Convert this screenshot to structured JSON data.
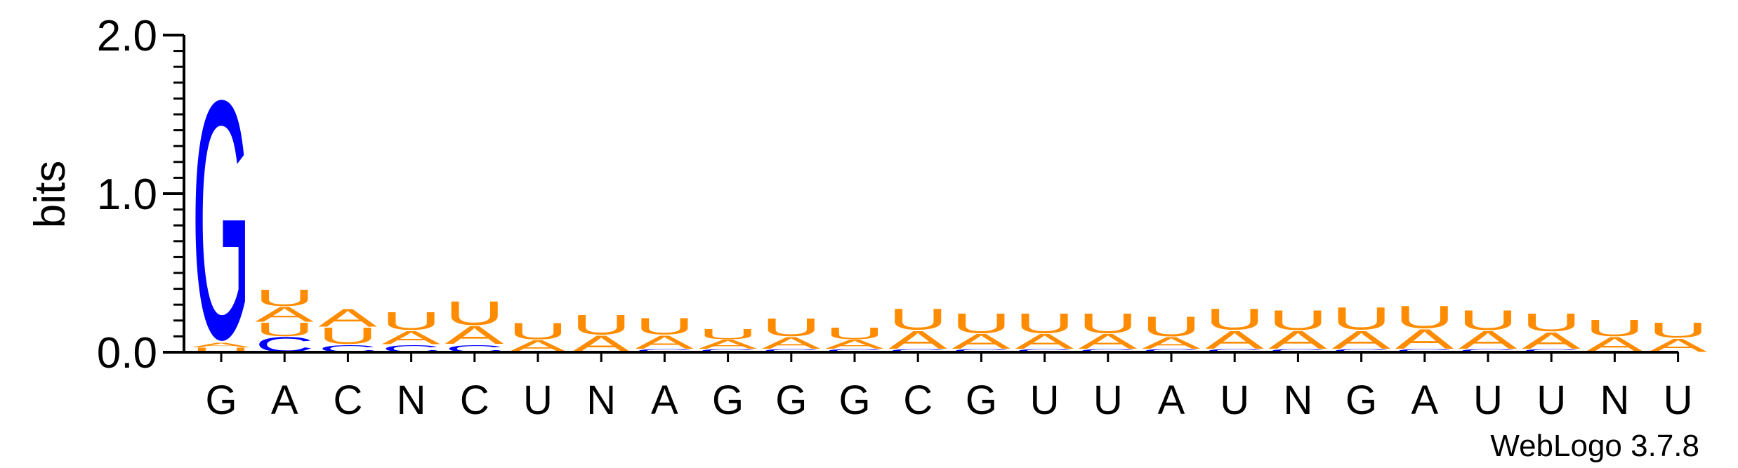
{
  "chart_data": {
    "type": "sequence-logo",
    "ylabel": "bits",
    "ylim": [
      0,
      2.0
    ],
    "yticks": [
      "0.0",
      "1.0",
      "2.0"
    ],
    "colors": {
      "G": "#0000ff",
      "C": "#0000ff",
      "A": "#ff8c00",
      "U": "#ff8c00"
    },
    "positions": [
      {
        "label": "G",
        "stack": [
          {
            "letter": "U",
            "bits": 0.03
          },
          {
            "letter": "A",
            "bits": 0.03
          },
          {
            "letter": "G",
            "bits": 1.6
          }
        ]
      },
      {
        "label": "A",
        "stack": [
          {
            "letter": "C",
            "bits": 0.1
          },
          {
            "letter": "U",
            "bits": 0.09
          },
          {
            "letter": "A",
            "bits": 0.1
          },
          {
            "letter": "U",
            "bits": 0.11
          }
        ]
      },
      {
        "label": "C",
        "stack": [
          {
            "letter": "C",
            "bits": 0.05
          },
          {
            "letter": "U",
            "bits": 0.11
          },
          {
            "letter": "A",
            "bits": 0.12
          }
        ]
      },
      {
        "label": "N",
        "stack": [
          {
            "letter": "C",
            "bits": 0.05
          },
          {
            "letter": "A",
            "bits": 0.09
          },
          {
            "letter": "U",
            "bits": 0.12
          }
        ]
      },
      {
        "label": "C",
        "stack": [
          {
            "letter": "C",
            "bits": 0.05
          },
          {
            "letter": "A",
            "bits": 0.12
          },
          {
            "letter": "U",
            "bits": 0.16
          }
        ]
      },
      {
        "label": "U",
        "stack": [
          {
            "letter": "A",
            "bits": 0.08
          },
          {
            "letter": "U",
            "bits": 0.11
          }
        ]
      },
      {
        "label": "N",
        "stack": [
          {
            "letter": "A",
            "bits": 0.11
          },
          {
            "letter": "U",
            "bits": 0.13
          }
        ]
      },
      {
        "label": "A",
        "stack": [
          {
            "letter": "C",
            "bits": 0.02
          },
          {
            "letter": "A",
            "bits": 0.09
          },
          {
            "letter": "U",
            "bits": 0.11
          }
        ]
      },
      {
        "label": "G",
        "stack": [
          {
            "letter": "C",
            "bits": 0.02
          },
          {
            "letter": "A",
            "bits": 0.06
          },
          {
            "letter": "U",
            "bits": 0.07
          }
        ]
      },
      {
        "label": "G",
        "stack": [
          {
            "letter": "C",
            "bits": 0.02
          },
          {
            "letter": "A",
            "bits": 0.08
          },
          {
            "letter": "U",
            "bits": 0.12
          }
        ]
      },
      {
        "label": "G",
        "stack": [
          {
            "letter": "C",
            "bits": 0.02
          },
          {
            "letter": "A",
            "bits": 0.06
          },
          {
            "letter": "U",
            "bits": 0.08
          }
        ]
      },
      {
        "label": "C",
        "stack": [
          {
            "letter": "C",
            "bits": 0.02
          },
          {
            "letter": "A",
            "bits": 0.12
          },
          {
            "letter": "U",
            "bits": 0.14
          }
        ]
      },
      {
        "label": "G",
        "stack": [
          {
            "letter": "C",
            "bits": 0.02
          },
          {
            "letter": "A",
            "bits": 0.1
          },
          {
            "letter": "U",
            "bits": 0.13
          }
        ]
      },
      {
        "label": "U",
        "stack": [
          {
            "letter": "C",
            "bits": 0.02
          },
          {
            "letter": "A",
            "bits": 0.1
          },
          {
            "letter": "U",
            "bits": 0.13
          }
        ]
      },
      {
        "label": "U",
        "stack": [
          {
            "letter": "C",
            "bits": 0.02
          },
          {
            "letter": "A",
            "bits": 0.1
          },
          {
            "letter": "U",
            "bits": 0.13
          }
        ]
      },
      {
        "label": "A",
        "stack": [
          {
            "letter": "C",
            "bits": 0.02
          },
          {
            "letter": "A",
            "bits": 0.08
          },
          {
            "letter": "U",
            "bits": 0.13
          }
        ]
      },
      {
        "label": "U",
        "stack": [
          {
            "letter": "C",
            "bits": 0.02
          },
          {
            "letter": "A",
            "bits": 0.12
          },
          {
            "letter": "U",
            "bits": 0.14
          }
        ]
      },
      {
        "label": "N",
        "stack": [
          {
            "letter": "C",
            "bits": 0.02
          },
          {
            "letter": "A",
            "bits": 0.12
          },
          {
            "letter": "U",
            "bits": 0.13
          }
        ]
      },
      {
        "label": "G",
        "stack": [
          {
            "letter": "C",
            "bits": 0.02
          },
          {
            "letter": "A",
            "bits": 0.12
          },
          {
            "letter": "U",
            "bits": 0.15
          }
        ]
      },
      {
        "label": "A",
        "stack": [
          {
            "letter": "C",
            "bits": 0.02
          },
          {
            "letter": "A",
            "bits": 0.13
          },
          {
            "letter": "U",
            "bits": 0.15
          }
        ]
      },
      {
        "label": "U",
        "stack": [
          {
            "letter": "C",
            "bits": 0.02
          },
          {
            "letter": "A",
            "bits": 0.12
          },
          {
            "letter": "U",
            "bits": 0.13
          }
        ]
      },
      {
        "label": "U",
        "stack": [
          {
            "letter": "C",
            "bits": 0.02
          },
          {
            "letter": "A",
            "bits": 0.11
          },
          {
            "letter": "U",
            "bits": 0.12
          }
        ]
      },
      {
        "label": "N",
        "stack": [
          {
            "letter": "A",
            "bits": 0.1
          },
          {
            "letter": "U",
            "bits": 0.11
          }
        ]
      },
      {
        "label": "U",
        "stack": [
          {
            "letter": "A",
            "bits": 0.09
          },
          {
            "letter": "U",
            "bits": 0.1
          }
        ]
      }
    ]
  },
  "footer": {
    "text": "WebLogo 3.7.8"
  }
}
